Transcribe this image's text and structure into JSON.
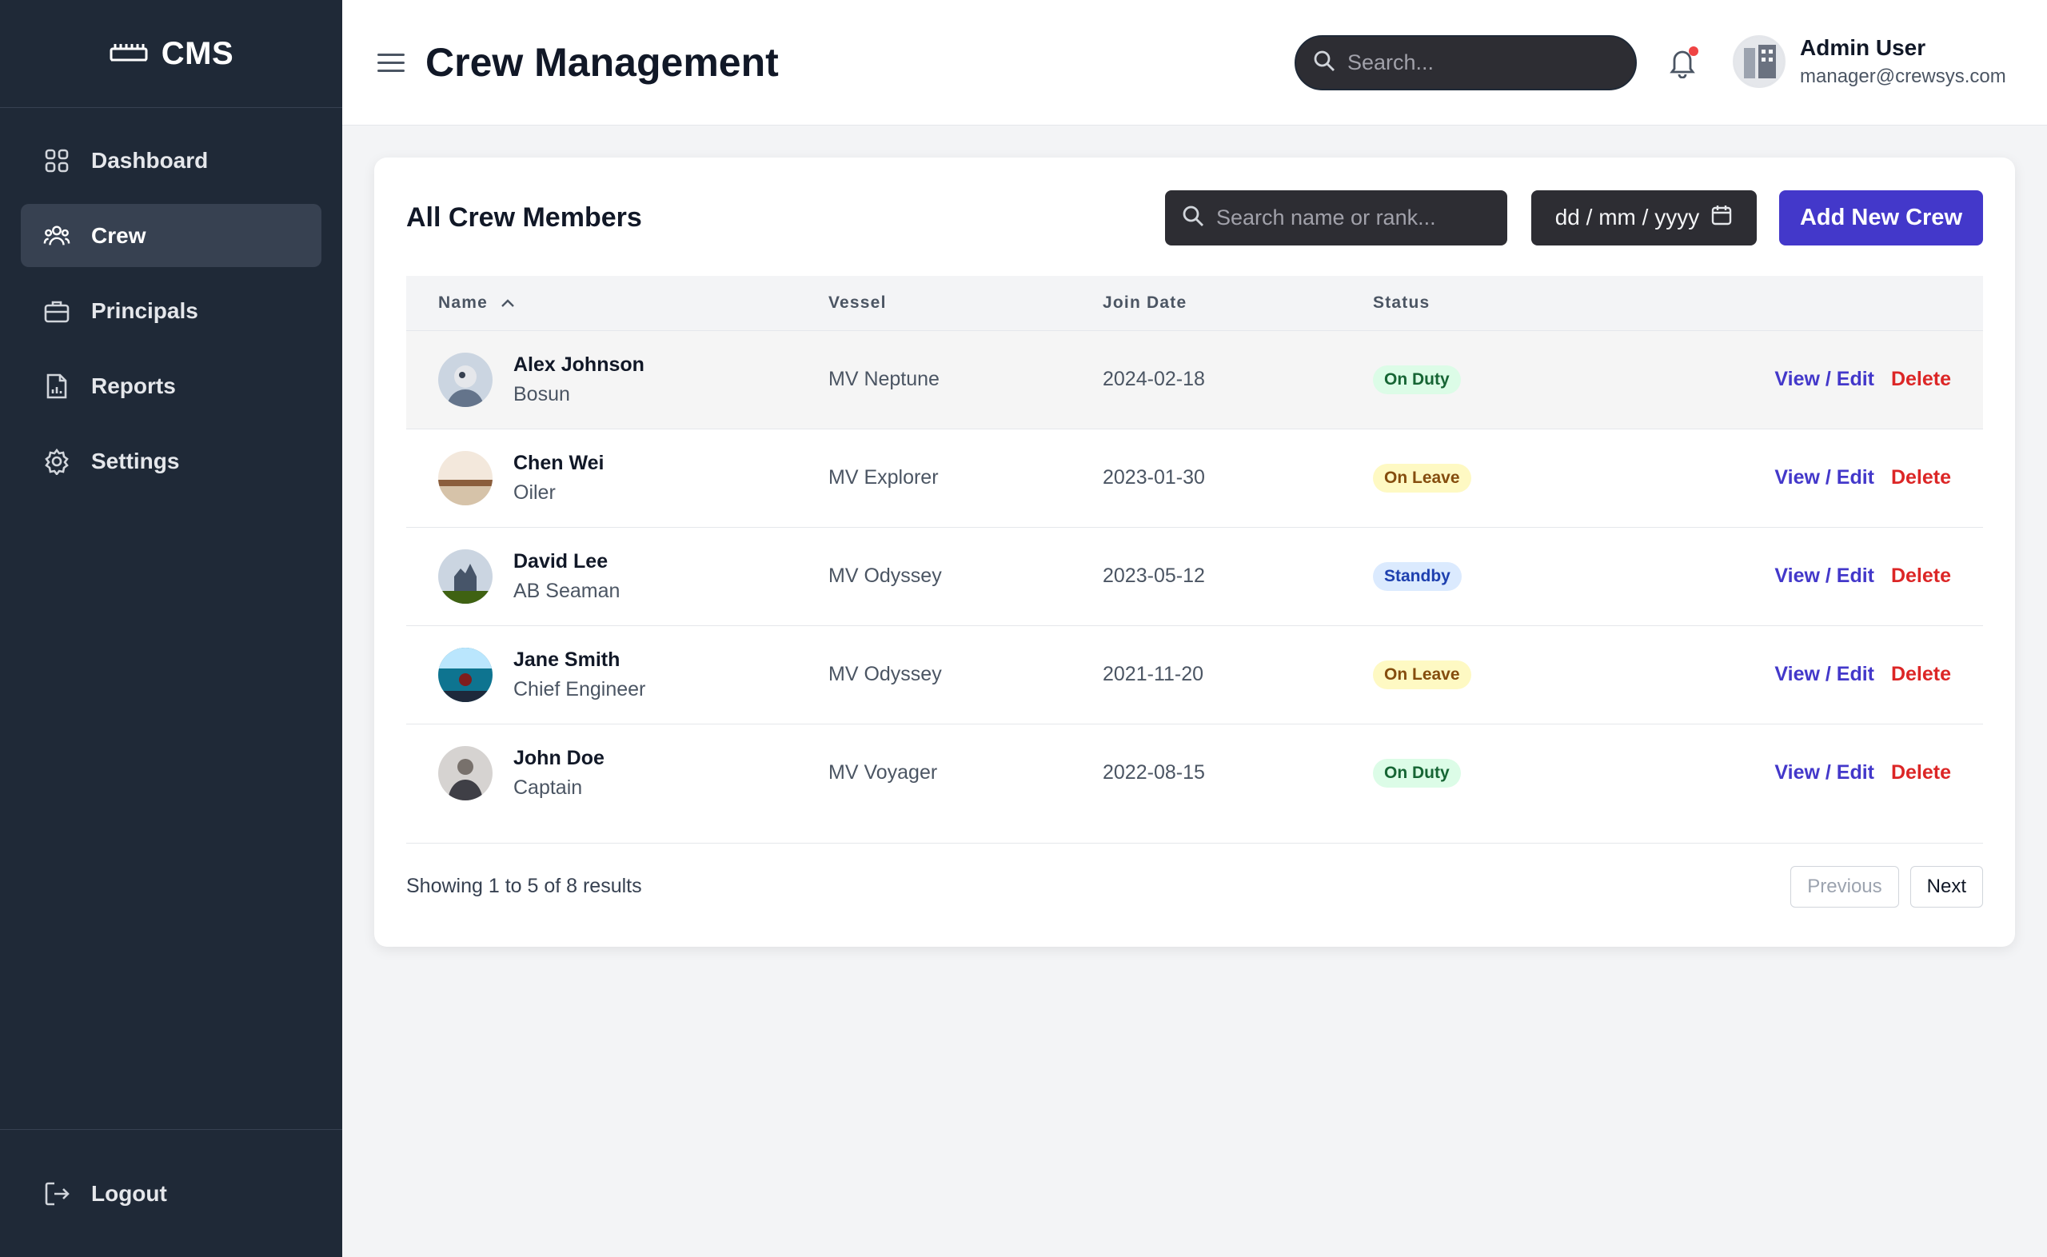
{
  "brand": {
    "name": "CMS"
  },
  "sidebar": {
    "items": [
      {
        "label": "Dashboard",
        "icon": "grid-icon"
      },
      {
        "label": "Crew",
        "icon": "users-icon",
        "active": true
      },
      {
        "label": "Principals",
        "icon": "briefcase-icon"
      },
      {
        "label": "Reports",
        "icon": "report-icon"
      },
      {
        "label": "Settings",
        "icon": "gear-icon"
      }
    ],
    "logout": {
      "label": "Logout",
      "icon": "logout-icon"
    }
  },
  "header": {
    "title": "Crew Management",
    "search_placeholder": "Search...",
    "user": {
      "name": "Admin User",
      "email": "manager@crewsys.com"
    }
  },
  "card": {
    "title": "All Crew Members",
    "search_placeholder": "Search name or rank...",
    "date_placeholder": "dd / mm / yyyy",
    "add_button": "Add New Crew",
    "columns": [
      "Name",
      "Vessel",
      "Join Date",
      "Status"
    ],
    "rows": [
      {
        "name": "Alex Johnson",
        "rank": "Bosun",
        "vessel": "MV Neptune",
        "join_date": "2024-02-18",
        "status": "On Duty",
        "status_color": "#dcfce7"
      },
      {
        "name": "Chen Wei",
        "rank": "Oiler",
        "vessel": "MV Explorer",
        "join_date": "2023-01-30",
        "status": "On Leave",
        "status_color": "#fef9c3"
      },
      {
        "name": "David Lee",
        "rank": "AB Seaman",
        "vessel": "MV Odyssey",
        "join_date": "2023-05-12",
        "status": "Standby",
        "status_color": "#dbeafe"
      },
      {
        "name": "Jane Smith",
        "rank": "Chief Engineer",
        "vessel": "MV Odyssey",
        "join_date": "2021-11-20",
        "status": "On Leave",
        "status_color": "#fef9c3"
      },
      {
        "name": "John Doe",
        "rank": "Captain",
        "vessel": "MV Voyager",
        "join_date": "2022-08-15",
        "status": "On Duty",
        "status_color": "#dcfce7"
      }
    ],
    "actions": {
      "edit": "View / Edit",
      "delete": "Delete"
    },
    "footer": {
      "results_text": "Showing 1 to 5 of 8 results",
      "previous": "Previous",
      "next": "Next"
    }
  },
  "colors": {
    "sidebar_bg": "#1f2937",
    "accent": "#4338ca",
    "danger": "#dc2626"
  }
}
